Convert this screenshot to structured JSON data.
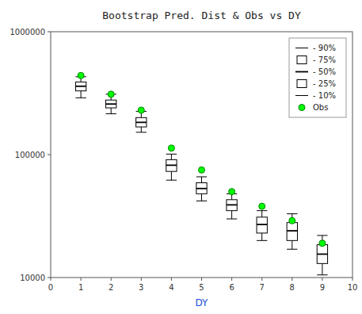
{
  "chart_data": {
    "type": "box",
    "title": "Bootstrap Pred. Dist & Obs vs DY",
    "xlabel": "DY",
    "x": [
      1,
      2,
      3,
      4,
      5,
      6,
      7,
      8,
      9
    ],
    "xlim": [
      0,
      10
    ],
    "xticks": [
      0,
      1,
      2,
      3,
      4,
      5,
      6,
      7,
      8,
      9,
      10
    ],
    "ylim": [
      10000,
      1000000
    ],
    "yticks": [
      10000,
      100000,
      1000000
    ],
    "log": "y",
    "grid": false,
    "legend": "upper right",
    "series": [
      {
        "name": "- 90%",
        "color": "#000000",
        "values": [
          430000,
          310000,
          225000,
          101000,
          66000,
          48000,
          35000,
          33000,
          22000
        ]
      },
      {
        "name": "- 75%",
        "color": "#000000",
        "values": [
          390000,
          278000,
          200000,
          91000,
          59000,
          43000,
          31000,
          28000,
          18500
        ]
      },
      {
        "name": "- 50%",
        "color": "#000000",
        "values": [
          360000,
          258000,
          183000,
          82000,
          53000,
          39000,
          27000,
          24000,
          15500
        ]
      },
      {
        "name": "- 25%",
        "color": "#000000",
        "values": [
          330000,
          240000,
          168000,
          73000,
          48000,
          35000,
          23000,
          20000,
          13000
        ]
      },
      {
        "name": "- 10%",
        "color": "#000000",
        "values": [
          290000,
          215000,
          152000,
          62000,
          42000,
          30000,
          20000,
          17000,
          10500
        ]
      },
      {
        "name": "Obs",
        "type": "scatter",
        "marker": "circle",
        "color": "#00ff00",
        "values": [
          440000,
          310000,
          230000,
          113000,
          75000,
          50000,
          38000,
          29000,
          19000
        ]
      }
    ]
  }
}
